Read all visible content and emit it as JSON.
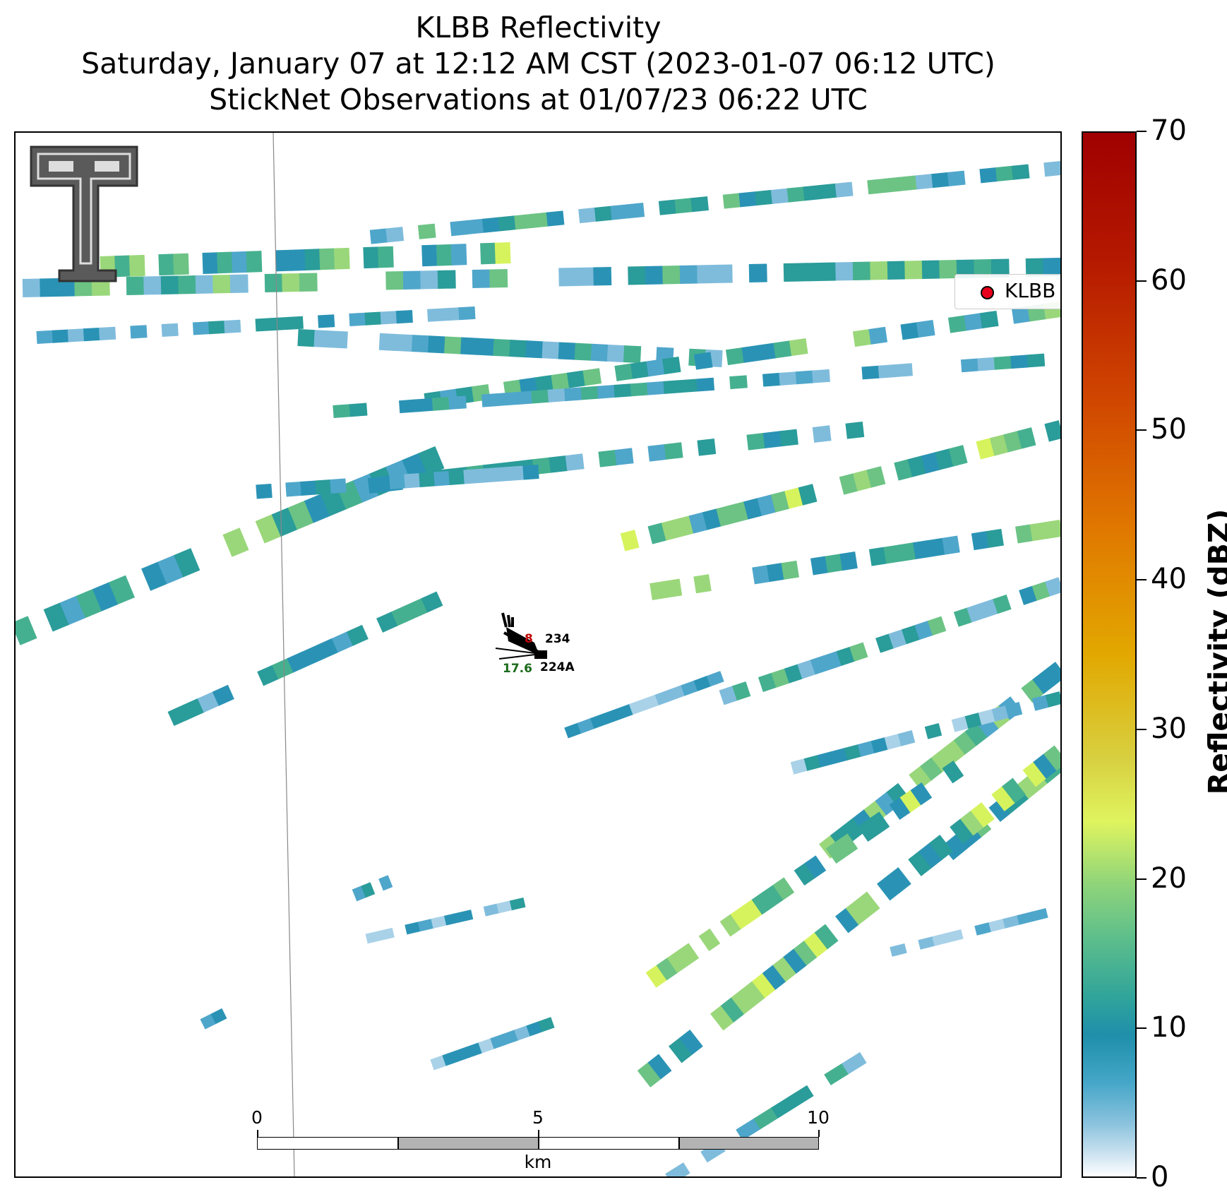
{
  "title": {
    "line1": "KLBB Reflectivity",
    "line2": "Saturday, January 07 at 12:12 AM CST (2023-01-07 06:12 UTC)",
    "line3": "StickNet Observations at 01/07/23 06:22 UTC"
  },
  "legend": {
    "label": "KLBB",
    "marker_color": "#e8001c"
  },
  "colorbar": {
    "label": "Reflectivity (dBZ)",
    "ticks": [
      "0",
      "10",
      "20",
      "30",
      "40",
      "50",
      "60",
      "70"
    ],
    "range": [
      0,
      70
    ],
    "colors": {
      "low": "#ffffff",
      "mid_low": "#1f8fab",
      "mid": "#8fd47a",
      "high_mid": "#e2a800",
      "high": "#a00000"
    }
  },
  "scale_bar": {
    "unit": "km",
    "labels": [
      "0",
      "5",
      "10"
    ],
    "colors": {
      "light": "#ffffff",
      "dark": "#b3b3b3"
    }
  },
  "sticknet": {
    "station_a": "234",
    "station_b": "224A",
    "temperature_fragment": "8",
    "dewpoint": "17.6",
    "temperature_color": "#c00000",
    "dewpoint_color": "#1b6b1b"
  },
  "logo": {
    "name": "texas-tech-double-t-logo"
  }
}
